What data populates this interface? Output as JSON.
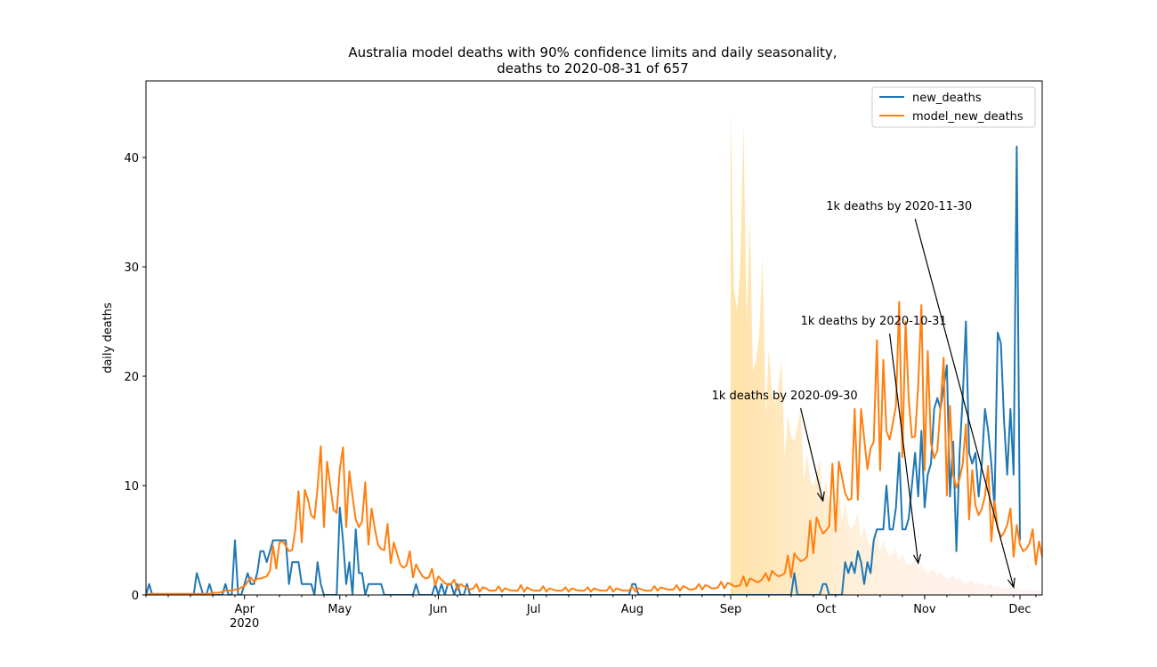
{
  "chart_data": {
    "type": "line",
    "title_line1": "Australia model deaths with 90% confidence limits and daily seasonality,",
    "title_line2": "deaths to 2020-08-31 of 657",
    "xlabel": "",
    "ylabel": "daily deaths",
    "x_range": [
      "2020-03-01",
      "2020-12-08"
    ],
    "ylim": [
      0,
      47
    ],
    "y_ticks": [
      0,
      10,
      20,
      30,
      40
    ],
    "x_ticks": [
      {
        "date": "2020-04-01",
        "label": "Apr",
        "sublabel": "2020"
      },
      {
        "date": "2020-05-01",
        "label": "May",
        "sublabel": ""
      },
      {
        "date": "2020-06-01",
        "label": "Jun",
        "sublabel": ""
      },
      {
        "date": "2020-07-01",
        "label": "Jul",
        "sublabel": ""
      },
      {
        "date": "2020-08-01",
        "label": "Aug",
        "sublabel": ""
      },
      {
        "date": "2020-09-01",
        "label": "Sep",
        "sublabel": ""
      },
      {
        "date": "2020-10-01",
        "label": "Oct",
        "sublabel": ""
      },
      {
        "date": "2020-11-01",
        "label": "Nov",
        "sublabel": ""
      },
      {
        "date": "2020-12-01",
        "label": "Dec",
        "sublabel": ""
      }
    ],
    "legend_position": "top-right",
    "colors": {
      "new_deaths": "#1f77b4",
      "model_new_deaths": "#ff7f0e",
      "band_start": "#ffd98a",
      "band_end": "#ffd0d8"
    },
    "series": [
      {
        "name": "new_deaths",
        "start_date": "2020-03-01",
        "values": [
          0,
          1,
          0,
          0,
          0,
          0,
          0,
          0,
          0,
          0,
          0,
          0,
          0,
          0,
          0,
          0,
          2,
          1,
          0,
          0,
          1,
          0,
          0,
          0,
          0,
          1,
          0,
          0,
          5,
          0,
          0,
          1,
          2,
          1,
          1,
          2,
          4,
          4,
          3,
          4,
          5,
          5,
          5,
          5,
          5,
          1,
          3,
          3,
          3,
          1,
          1,
          1,
          1,
          0,
          3,
          1,
          0,
          0,
          0,
          0,
          0,
          8,
          5,
          1,
          3,
          0,
          6,
          2,
          2,
          0,
          1,
          1,
          1,
          1,
          1,
          0,
          0,
          0,
          0,
          0,
          0,
          0,
          0,
          0,
          0,
          1,
          0,
          0,
          0,
          0,
          0,
          1,
          0,
          1,
          0,
          1,
          1,
          0,
          1,
          0,
          0,
          1,
          0,
          0,
          0,
          0,
          0,
          0,
          0,
          0,
          0,
          0,
          0,
          0,
          0,
          0,
          0,
          0,
          0,
          0,
          0,
          0,
          0,
          0,
          0,
          0,
          0,
          0,
          0,
          0,
          0,
          0,
          0,
          0,
          0,
          0,
          0,
          0,
          0,
          0,
          0,
          0,
          0,
          0,
          0,
          0,
          0,
          0,
          0,
          0,
          0,
          0,
          0,
          1,
          1,
          0,
          0,
          0,
          0,
          0,
          0,
          0,
          0,
          0,
          0,
          0,
          0,
          0,
          0,
          0,
          0,
          0,
          0,
          0,
          0,
          0,
          0,
          0,
          0,
          0,
          0,
          0,
          0,
          0,
          0,
          0,
          0,
          0,
          0,
          0,
          0,
          0,
          0,
          0,
          0,
          0,
          0,
          0,
          0,
          0,
          0,
          0,
          0,
          0,
          2,
          0,
          0,
          0,
          0,
          0,
          0,
          0,
          0,
          1,
          1,
          0,
          0,
          0,
          0,
          0,
          3,
          2,
          3,
          2,
          4,
          3,
          1,
          3,
          2,
          5,
          6,
          6,
          6,
          10,
          6,
          6,
          8,
          13,
          6,
          6,
          7,
          10,
          13,
          9,
          15,
          8,
          11,
          12,
          17,
          18,
          17,
          19,
          21,
          9,
          14,
          4,
          13,
          18,
          25,
          13,
          12,
          13,
          9,
          12,
          17,
          15,
          12,
          8,
          24,
          23,
          16,
          11,
          17,
          11,
          41,
          5
        ],
        "note": "new_deaths values continue daily from start_date; only the visible polyline is drawn"
      },
      {
        "name": "model_new_deaths",
        "start_date": "2020-03-01",
        "values": [
          0.1,
          0.1,
          0.1,
          0.1,
          0.1,
          0.1,
          0.1,
          0.1,
          0.1,
          0.1,
          0.1,
          0.1,
          0.1,
          0.1,
          0.1,
          0.1,
          0.1,
          0.1,
          0.1,
          0.1,
          0.1,
          0.2,
          0.2,
          0.2,
          0.3,
          0.4,
          0.4,
          0.4,
          0.5,
          0.5,
          0.7,
          0.8,
          1.2,
          1.6,
          1.2,
          1.5,
          1.5,
          1.6,
          1.7,
          2.2,
          4.5,
          2.4,
          4.8,
          4.9,
          4.5,
          4.0,
          4.1,
          6.0,
          9.5,
          4.8,
          9.6,
          8.7,
          7.3,
          7.0,
          9.8,
          13.6,
          6.2,
          12.2,
          10.0,
          7.8,
          7.5,
          11.5,
          13.5,
          6.2,
          11.3,
          9.0,
          6.9,
          6.2,
          6.7,
          10.3,
          4.6,
          7.9,
          6.1,
          4.6,
          4.2,
          4.1,
          6.5,
          2.9,
          4.8,
          3.8,
          2.8,
          2.5,
          2.7,
          4.0,
          1.6,
          2.8,
          2.2,
          1.7,
          1.5,
          1.6,
          2.4,
          0.9,
          1.7,
          1.4,
          1.1,
          0.9,
          1.0,
          1.4,
          0.5,
          1.0,
          0.8,
          0.7,
          0.5,
          0.6,
          1.0,
          0.3,
          0.7,
          0.6,
          0.4,
          0.4,
          0.4,
          0.8,
          0.3,
          0.6,
          0.5,
          0.4,
          0.4,
          0.4,
          0.9,
          0.3,
          0.7,
          0.5,
          0.4,
          0.4,
          0.4,
          0.8,
          0.3,
          0.6,
          0.5,
          0.4,
          0.4,
          0.4,
          0.7,
          0.3,
          0.6,
          0.5,
          0.4,
          0.4,
          0.4,
          0.7,
          0.3,
          0.6,
          0.5,
          0.4,
          0.4,
          0.4,
          0.8,
          0.3,
          0.6,
          0.5,
          0.4,
          0.4,
          0.4,
          0.8,
          0.3,
          0.6,
          0.5,
          0.4,
          0.4,
          0.4,
          0.8,
          0.4,
          0.7,
          0.6,
          0.5,
          0.5,
          0.5,
          0.9,
          0.4,
          0.8,
          0.7,
          0.5,
          0.5,
          0.6,
          1.0,
          0.5,
          0.9,
          0.8,
          0.6,
          0.6,
          0.7,
          1.2,
          0.6,
          1.1,
          1.0,
          0.8,
          0.8,
          0.9,
          1.7,
          0.8,
          1.5,
          1.4,
          1.2,
          1.2,
          1.5,
          2.0,
          1.3,
          2.2,
          1.9,
          1.7,
          1.8,
          2.0,
          3.6,
          1.6,
          3.8,
          3.4,
          3.1,
          3.2,
          3.5,
          6.8,
          3.8,
          7.1,
          6.3,
          5.6,
          5.9,
          6.3,
          12.0,
          5.8,
          12.2,
          10.8,
          9.3,
          8.7,
          8.8,
          17.0,
          8.7,
          17.0,
          14.3,
          11.5,
          13.4,
          14.0,
          23.3,
          11.4,
          21.5,
          15.0,
          14.2,
          15.7,
          17.3,
          26.8,
          12.6,
          25.0,
          17.9,
          14.4,
          14.5,
          19.2,
          26.5,
          11.4,
          22.3,
          13.9,
          12.5,
          13.2,
          17.2,
          21.7,
          9.1,
          17.3,
          11.0,
          9.8,
          10.6,
          12.0,
          15.6,
          6.9,
          11.4,
          8.2,
          7.3,
          7.9,
          9.0,
          11.8,
          4.9,
          8.6,
          6.1,
          5.3,
          5.7,
          6.4,
          7.9,
          3.5,
          6.4,
          4.6,
          4.0,
          4.2,
          4.7,
          6.0,
          2.8,
          4.9,
          3.5,
          3.1,
          3.3,
          3.6,
          4.7,
          1.9,
          3.7,
          2.8,
          2.4,
          2.6,
          2.8,
          3.7,
          1.6,
          2.9,
          2.1,
          1.8,
          2.0,
          2.2,
          2.8,
          1.2,
          2.2,
          1.6,
          1.4,
          1.5,
          1.6,
          2.1,
          0.9,
          1.7,
          1.2,
          1.1,
          1.2,
          1.3,
          1.6,
          0.7,
          1.3,
          0.9,
          0.8,
          0.9,
          1.0,
          1.2,
          0.5,
          0.9,
          0.7,
          0.6,
          0.6,
          0.7,
          0.9,
          0.4,
          0.7,
          0.5,
          0.4,
          0.5,
          0.5,
          0.6,
          0.3,
          0.5,
          0.4,
          0.3,
          0.3,
          0.4,
          0.4,
          0.2,
          0.3,
          0.3,
          0.2,
          0.2,
          0.3,
          0.3,
          0.1,
          0.2,
          0.2,
          0.1,
          0.1,
          0.2,
          0.2,
          0.1
        ]
      }
    ],
    "confidence_band": {
      "start_date": "2020-09-01",
      "lower": [
        0,
        0,
        0,
        0,
        0,
        0,
        0,
        0,
        0,
        0,
        0,
        0,
        0,
        0,
        0,
        0,
        0,
        0,
        0,
        0,
        0,
        0,
        0,
        0,
        0,
        0,
        0,
        0,
        0,
        0,
        0,
        0,
        0,
        0,
        0,
        0,
        0,
        0,
        0,
        0,
        0,
        0,
        0,
        0,
        0,
        0,
        0,
        0,
        0,
        0,
        0,
        0,
        0,
        0,
        0,
        0,
        0,
        0,
        0,
        0,
        0,
        0,
        0,
        0,
        0,
        0,
        0,
        0,
        0,
        0,
        0,
        0,
        0,
        0,
        0,
        0,
        0,
        0,
        0,
        0,
        0,
        0,
        0,
        0,
        0,
        0,
        0,
        0,
        0,
        0,
        0,
        0,
        0,
        0,
        0,
        0,
        0,
        0,
        0,
        0
      ],
      "upper": [
        44.5,
        28.0,
        26.0,
        30.0,
        43.0,
        25.0,
        34.5,
        20.5,
        21.5,
        24.0,
        31.0,
        16.5,
        22.5,
        18.5,
        17.5,
        19.0,
        21.5,
        12.5,
        16.5,
        14.5,
        14.0,
        15.5,
        17.0,
        10.5,
        13.0,
        10.5,
        10.0,
        11.0,
        12.5,
        8.5,
        10.5,
        8.5,
        8.0,
        8.5,
        10.0,
        6.5,
        8.5,
        6.5,
        6.0,
        6.5,
        7.5,
        5.0,
        6.5,
        5.0,
        4.5,
        5.0,
        5.5,
        4.0,
        5.0,
        4.0,
        3.5,
        3.8,
        4.2,
        3.0,
        3.8,
        3.0,
        2.7,
        2.9,
        3.2,
        2.3,
        2.9,
        2.3,
        2.0,
        2.2,
        2.4,
        1.7,
        2.2,
        1.7,
        1.5,
        1.6,
        1.8,
        1.3,
        1.6,
        1.3,
        1.1,
        1.2,
        1.4,
        1.0,
        1.2,
        1.0,
        0.8,
        0.9,
        1.0,
        0.7,
        0.9,
        0.7,
        0.6,
        0.7,
        0.8,
        0.5,
        0.7,
        0.5,
        0.5,
        0.5,
        0.6,
        0.4,
        0.5,
        0.4,
        0.4,
        0.4
      ]
    },
    "annotations": [
      {
        "text": "1k deaths by 2020-09-30",
        "text_x": "2020-08-26",
        "text_y": 17.9,
        "target_x": "2020-09-30",
        "target_y": 8.6
      },
      {
        "text": "1k deaths by 2020-10-31",
        "text_x": "2020-09-23",
        "text_y": 24.7,
        "target_x": "2020-10-30",
        "target_y": 2.9
      },
      {
        "text": "1k deaths by 2020-11-30",
        "text_x": "2020-10-01",
        "text_y": 35.2,
        "target_x": "2020-11-29",
        "target_y": 0.7
      }
    ]
  }
}
